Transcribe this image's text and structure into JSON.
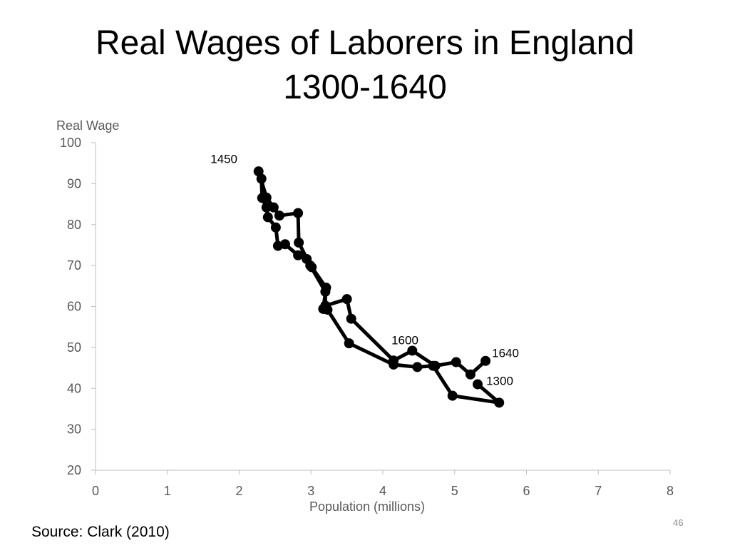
{
  "slide": {
    "title_line1": "Real Wages of Laborers in England",
    "title_line2": "1300-1640",
    "source": "Source: Clark (2010)",
    "page_number": "46"
  },
  "chart_data": {
    "type": "scatter",
    "xlabel": "Population (millions)",
    "ylabel": "Real Wage",
    "xlim": [
      0,
      8
    ],
    "ylim": [
      20,
      100
    ],
    "x_ticks": [
      0,
      1,
      2,
      3,
      4,
      5,
      6,
      7,
      8
    ],
    "y_ticks": [
      20,
      30,
      40,
      50,
      60,
      70,
      80,
      90,
      100
    ],
    "grid": false,
    "line_color": "#000000",
    "marker_color": "#000000",
    "series": [
      {
        "points": [
          {
            "x": 5.32,
            "y": 41.0
          },
          {
            "x": 5.62,
            "y": 36.5
          },
          {
            "x": 4.97,
            "y": 38.2
          },
          {
            "x": 4.7,
            "y": 45.5
          },
          {
            "x": 4.48,
            "y": 45.2
          },
          {
            "x": 4.15,
            "y": 45.8
          },
          {
            "x": 3.53,
            "y": 51.0
          },
          {
            "x": 3.23,
            "y": 59.2
          },
          {
            "x": 3.17,
            "y": 59.4
          },
          {
            "x": 3.21,
            "y": 64.6
          },
          {
            "x": 3.01,
            "y": 69.6
          },
          {
            "x": 2.94,
            "y": 71.6
          },
          {
            "x": 2.82,
            "y": 72.5
          },
          {
            "x": 2.64,
            "y": 75.2
          },
          {
            "x": 2.54,
            "y": 74.8
          },
          {
            "x": 2.51,
            "y": 79.3
          },
          {
            "x": 2.4,
            "y": 81.8
          },
          {
            "x": 2.38,
            "y": 84.2
          },
          {
            "x": 2.32,
            "y": 86.5
          },
          {
            "x": 2.31,
            "y": 91.2
          },
          {
            "x": 2.27,
            "y": 93.0
          },
          {
            "x": 2.38,
            "y": 86.6
          },
          {
            "x": 2.48,
            "y": 84.2
          },
          {
            "x": 2.56,
            "y": 82.2
          },
          {
            "x": 2.82,
            "y": 82.8
          },
          {
            "x": 2.83,
            "y": 75.6
          },
          {
            "x": 2.99,
            "y": 70.0
          },
          {
            "x": 3.2,
            "y": 63.6
          },
          {
            "x": 3.2,
            "y": 60.2
          },
          {
            "x": 3.5,
            "y": 61.8
          },
          {
            "x": 3.56,
            "y": 57.0
          },
          {
            "x": 4.15,
            "y": 46.8
          },
          {
            "x": 4.41,
            "y": 49.2
          },
          {
            "x": 4.73,
            "y": 45.5
          },
          {
            "x": 5.02,
            "y": 46.4
          },
          {
            "x": 5.22,
            "y": 43.4
          },
          {
            "x": 5.43,
            "y": 46.7
          }
        ]
      }
    ],
    "annotations": [
      {
        "text": "1450",
        "x": 1.6,
        "y": 95.0
      },
      {
        "text": "1600",
        "x": 4.12,
        "y": 50.8
      },
      {
        "text": "1640",
        "x": 5.52,
        "y": 47.6
      },
      {
        "text": "1300",
        "x": 5.44,
        "y": 40.8
      }
    ]
  }
}
